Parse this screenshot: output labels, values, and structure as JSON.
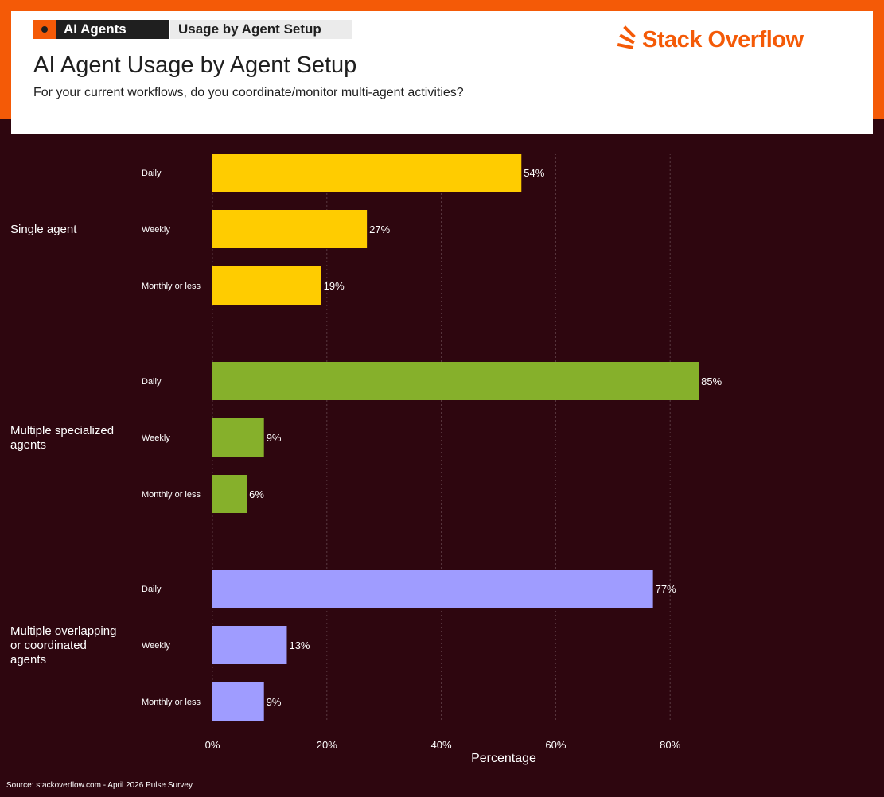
{
  "header": {
    "tag_primary": "AI Agents",
    "tag_secondary": "Usage by Agent Setup",
    "title": "AI Agent Usage by Agent Setup",
    "subtitle": "For your current workflows, do you coordinate/monitor multi-agent activities?",
    "logo_text": "Stack Overflow"
  },
  "colors": {
    "brand_orange": "#f45a07",
    "background": "#2e060f"
  },
  "chart_data": {
    "type": "bar",
    "orientation": "horizontal",
    "xlabel": "Percentage",
    "xlim": [
      0,
      85
    ],
    "xticks": [
      0,
      20,
      40,
      60,
      80
    ],
    "xtick_labels": [
      "0%",
      "20%",
      "40%",
      "60%",
      "80%"
    ],
    "grid": true,
    "legend": "none",
    "categories": [
      "Daily",
      "Weekly",
      "Monthly or less"
    ],
    "groups": [
      {
        "label": "Single agent",
        "color": "#ffcc00",
        "values": [
          54,
          27,
          19
        ]
      },
      {
        "label": "Multiple specialized agents",
        "color": "#86b02b",
        "values": [
          85,
          9,
          6
        ]
      },
      {
        "label": "Multiple overlapping or coordinated agents",
        "color": "#9f9cff",
        "values": [
          77,
          13,
          9
        ]
      }
    ]
  },
  "footer": {
    "source": "Source: stackoverflow.com - April 2026 Pulse Survey"
  }
}
